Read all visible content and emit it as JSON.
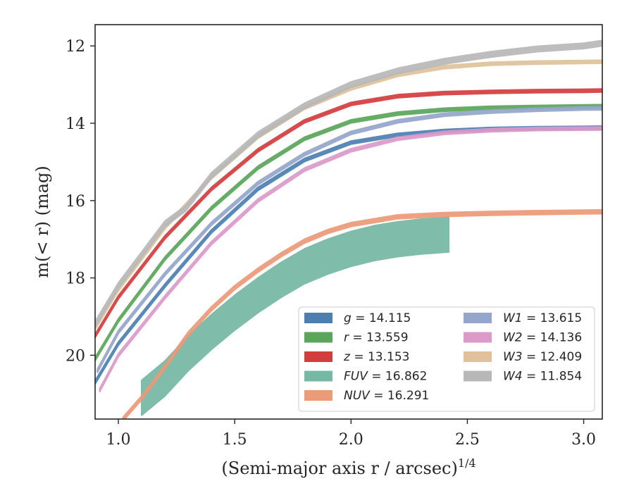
{
  "chart_data": {
    "type": "line",
    "title": "",
    "xlabel": "(Semi-major axis r / arcsec)",
    "xlabel_superscript": "1/4",
    "ylabel": "m(< r) (mag)",
    "xlim": [
      0.9,
      3.08
    ],
    "ylim": [
      21.65,
      11.45
    ],
    "y_inverted": true,
    "grid": false,
    "legend_position": "lower-right",
    "x_ticks": [
      "1.0",
      "1.5",
      "2.0",
      "2.5",
      "3.0"
    ],
    "x_tick_values": [
      1.0,
      1.5,
      2.0,
      2.5,
      3.0
    ],
    "y_ticks": [
      "12",
      "14",
      "16",
      "18",
      "20"
    ],
    "y_tick_values": [
      12,
      14,
      16,
      18,
      20
    ],
    "series": [
      {
        "name": "g = 14.115",
        "label_var": "g",
        "label_val": "14.115",
        "color": "#4c7fb0",
        "band": 0.04,
        "x": [
          0.9,
          1.0,
          1.2,
          1.4,
          1.6,
          1.8,
          2.0,
          2.2,
          2.4,
          2.6,
          2.8,
          3.0,
          3.08
        ],
        "y": [
          20.7,
          19.7,
          18.2,
          16.8,
          15.7,
          14.95,
          14.5,
          14.3,
          14.2,
          14.15,
          14.13,
          14.12,
          14.115
        ]
      },
      {
        "name": "r = 13.559",
        "label_var": "r",
        "label_val": "13.559",
        "color": "#5aa55a",
        "band": 0.04,
        "x": [
          0.9,
          1.0,
          1.2,
          1.4,
          1.6,
          1.8,
          2.0,
          2.2,
          2.4,
          2.6,
          2.8,
          3.0,
          3.08
        ],
        "y": [
          20.1,
          19.1,
          17.5,
          16.2,
          15.15,
          14.4,
          13.95,
          13.75,
          13.65,
          13.6,
          13.58,
          13.565,
          13.559
        ]
      },
      {
        "name": "z = 13.153",
        "label_var": "z",
        "label_val": "13.153",
        "color": "#d33d3d",
        "band": 0.04,
        "x": [
          0.9,
          1.0,
          1.2,
          1.4,
          1.6,
          1.8,
          2.0,
          2.2,
          2.4,
          2.6,
          2.8,
          3.0,
          3.08
        ],
        "y": [
          19.5,
          18.5,
          16.95,
          15.7,
          14.7,
          13.95,
          13.5,
          13.3,
          13.22,
          13.19,
          13.17,
          13.16,
          13.153
        ]
      },
      {
        "name": "FUV = 16.862",
        "label_var": "FUV",
        "label_val": "16.862",
        "color": "#75b8a3",
        "band": 0.45,
        "x": [
          1.1,
          1.2,
          1.3,
          1.4,
          1.5,
          1.6,
          1.7,
          1.8,
          1.9,
          2.0,
          2.1,
          2.2,
          2.3,
          2.42
        ],
        "y": [
          21.1,
          20.6,
          19.95,
          19.4,
          18.9,
          18.45,
          18.05,
          17.7,
          17.45,
          17.25,
          17.1,
          17.0,
          16.93,
          16.88
        ]
      },
      {
        "name": "NUV = 16.291",
        "label_var": "NUV",
        "label_val": "16.291",
        "color": "#ec9a78",
        "band": 0.05,
        "x": [
          1.02,
          1.1,
          1.2,
          1.3,
          1.4,
          1.5,
          1.6,
          1.7,
          1.8,
          1.9,
          2.0,
          2.2,
          2.4,
          2.6,
          2.8,
          3.0,
          3.08
        ],
        "y": [
          21.65,
          21.1,
          20.3,
          19.45,
          18.8,
          18.25,
          17.8,
          17.4,
          17.05,
          16.8,
          16.62,
          16.42,
          16.36,
          16.33,
          16.31,
          16.295,
          16.291
        ]
      },
      {
        "name": "W1 = 13.615",
        "label_var": "W1",
        "label_val": "13.615",
        "color": "#94a6cb",
        "band": 0.04,
        "x": [
          0.91,
          1.0,
          1.2,
          1.4,
          1.6,
          1.8,
          2.0,
          2.2,
          2.4,
          2.6,
          2.8,
          3.0,
          3.08
        ],
        "y": [
          20.4,
          19.4,
          17.9,
          16.6,
          15.55,
          14.8,
          14.25,
          13.95,
          13.78,
          13.7,
          13.65,
          13.62,
          13.615
        ]
      },
      {
        "name": "W2 = 14.136",
        "label_var": "W2",
        "label_val": "14.136",
        "color": "#dc9ac9",
        "band": 0.04,
        "x": [
          0.92,
          1.0,
          1.2,
          1.4,
          1.6,
          1.8,
          2.0,
          2.2,
          2.4,
          2.6,
          2.8,
          3.0,
          3.08
        ],
        "y": [
          20.9,
          20.0,
          18.5,
          17.1,
          16.0,
          15.2,
          14.7,
          14.4,
          14.25,
          14.18,
          14.15,
          14.14,
          14.136
        ]
      },
      {
        "name": "W3 = 12.409",
        "label_var": "W3",
        "label_val": "12.409",
        "color": "#dfc29b",
        "band": 0.04,
        "x": [
          0.9,
          1.0,
          1.2,
          1.4,
          1.6,
          1.8,
          2.0,
          2.2,
          2.4,
          2.6,
          2.8,
          3.0,
          3.08
        ],
        "y": [
          19.3,
          18.3,
          16.7,
          15.4,
          14.35,
          13.6,
          13.1,
          12.75,
          12.55,
          12.46,
          12.43,
          12.415,
          12.409
        ]
      },
      {
        "name": "W4 = 11.854",
        "label_var": "W4",
        "label_val": "11.854",
        "color": "#b8b8b8",
        "band": 0.07,
        "x": [
          0.9,
          1.0,
          1.2,
          1.29,
          1.4,
          1.6,
          1.8,
          2.0,
          2.2,
          2.4,
          2.6,
          2.8,
          3.0,
          3.08
        ],
        "y": [
          19.2,
          18.2,
          16.6,
          16.2,
          15.35,
          14.3,
          13.55,
          13.0,
          12.65,
          12.4,
          12.22,
          12.08,
          12.0,
          11.93
        ]
      }
    ]
  }
}
